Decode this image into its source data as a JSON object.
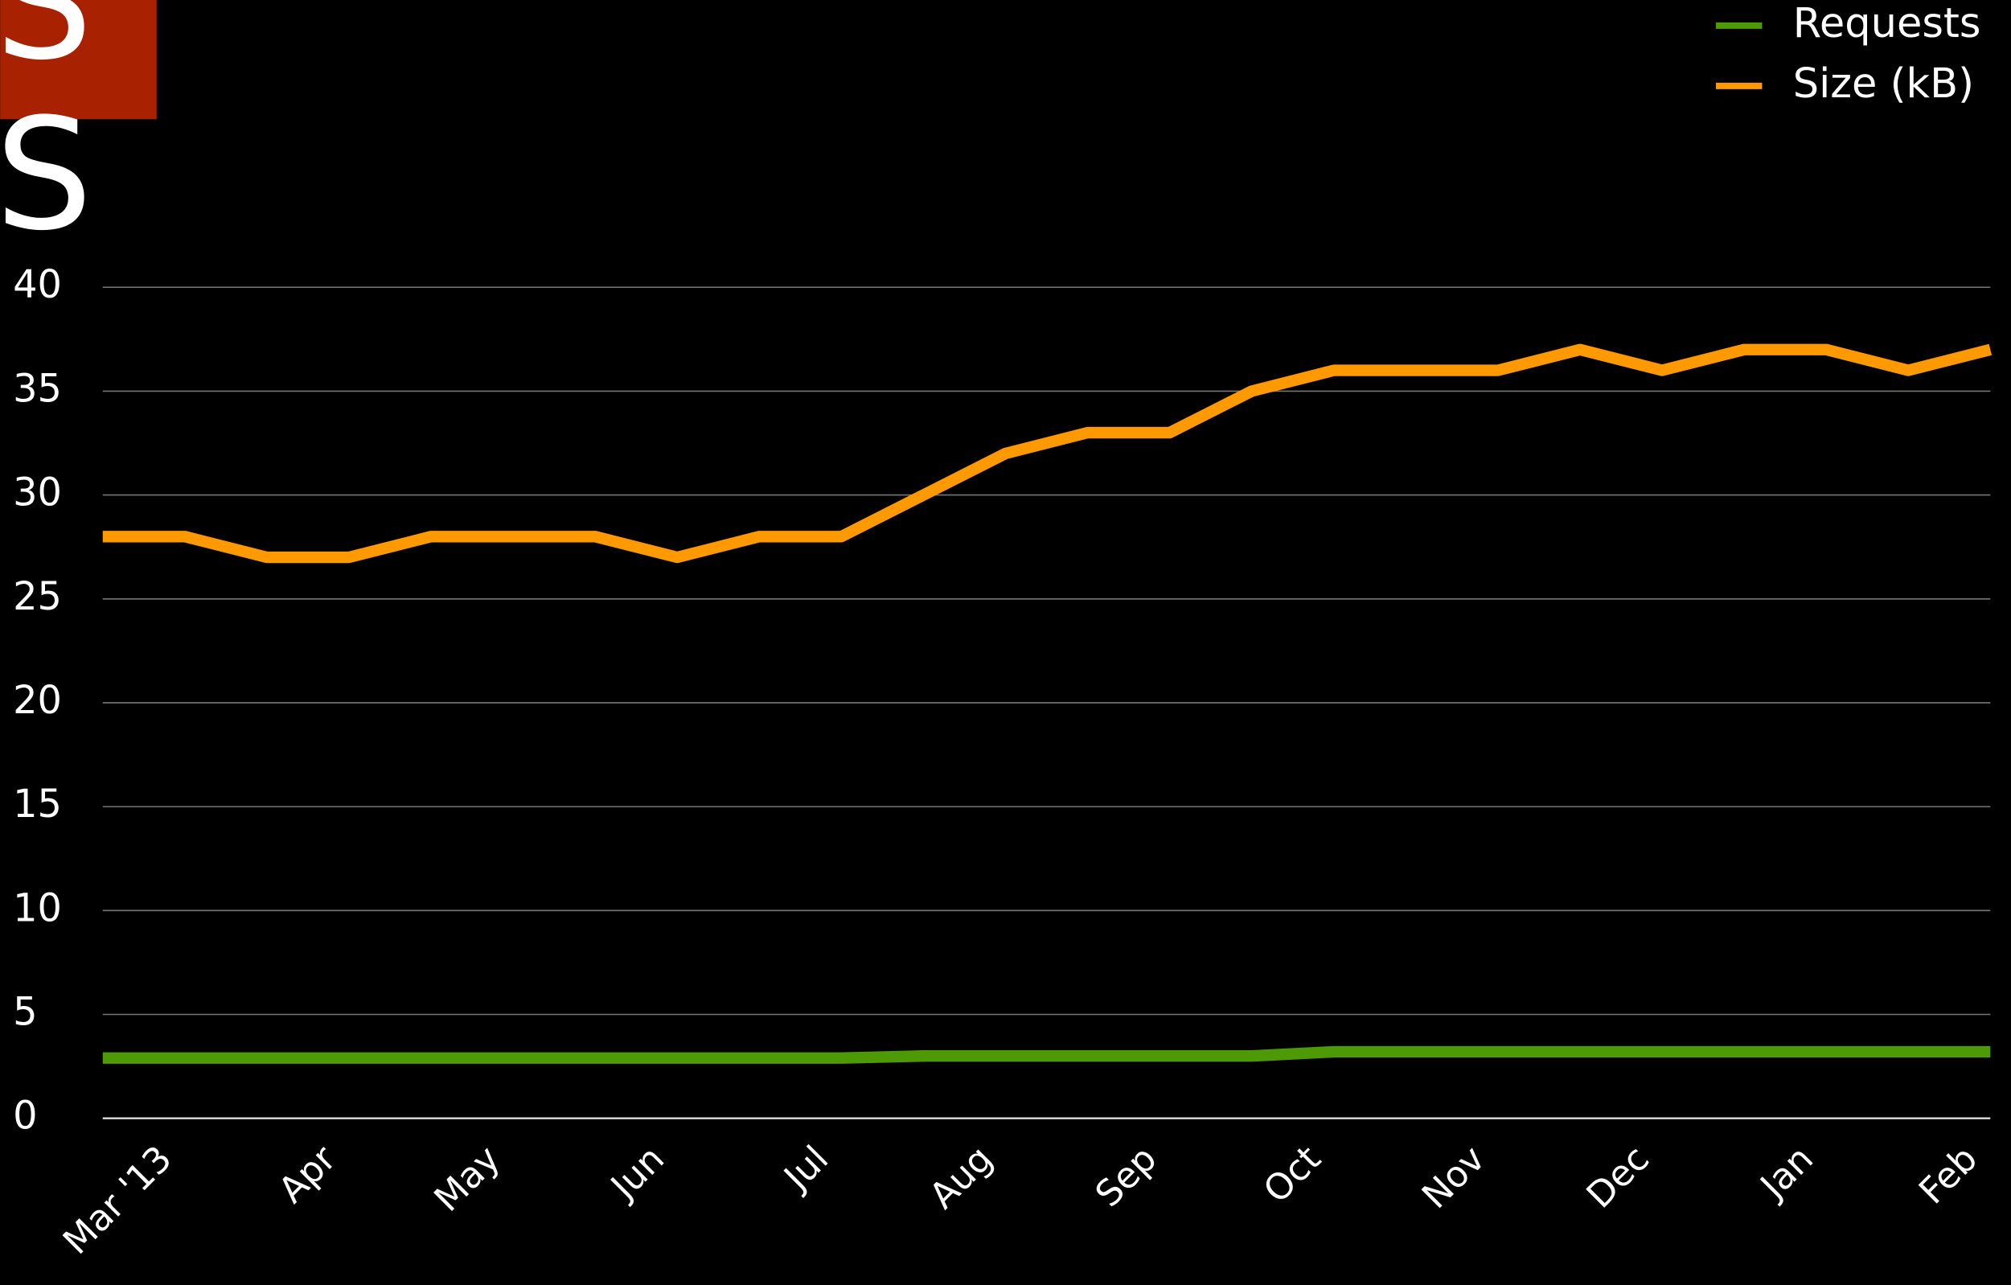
{
  "chart_data": {
    "type": "line",
    "annotations": [
      "S",
      "S"
    ],
    "categories": [
      "Mar '13",
      null,
      "Apr",
      null,
      "May",
      null,
      "Jun",
      null,
      "Jul",
      null,
      "Aug",
      null,
      "Sep",
      null,
      "Oct",
      null,
      "Nov",
      null,
      "Dec",
      null,
      "Jan",
      null,
      "Feb",
      null
    ],
    "series": [
      {
        "name": "Requests",
        "color": "#4e9a06",
        "values": [
          2.9,
          2.9,
          2.9,
          2.9,
          2.9,
          2.9,
          2.9,
          2.9,
          2.9,
          2.9,
          3.0,
          3.0,
          3.0,
          3.0,
          3.0,
          3.2,
          3.2,
          3.2,
          3.2,
          3.2,
          3.2,
          3.2,
          3.2,
          3.2
        ]
      },
      {
        "name": "Size (kB)",
        "color": "#ff9900",
        "values": [
          28,
          28,
          27,
          27,
          28,
          28,
          28,
          27,
          28,
          28,
          30,
          32,
          33,
          33,
          35,
          36,
          36,
          36,
          37,
          36,
          37,
          37,
          36,
          37
        ]
      }
    ],
    "ylim": [
      0,
      40
    ],
    "yticks": [
      0,
      5,
      10,
      15,
      20,
      25,
      30,
      35,
      40
    ],
    "grid": true,
    "legend": "top-right"
  }
}
